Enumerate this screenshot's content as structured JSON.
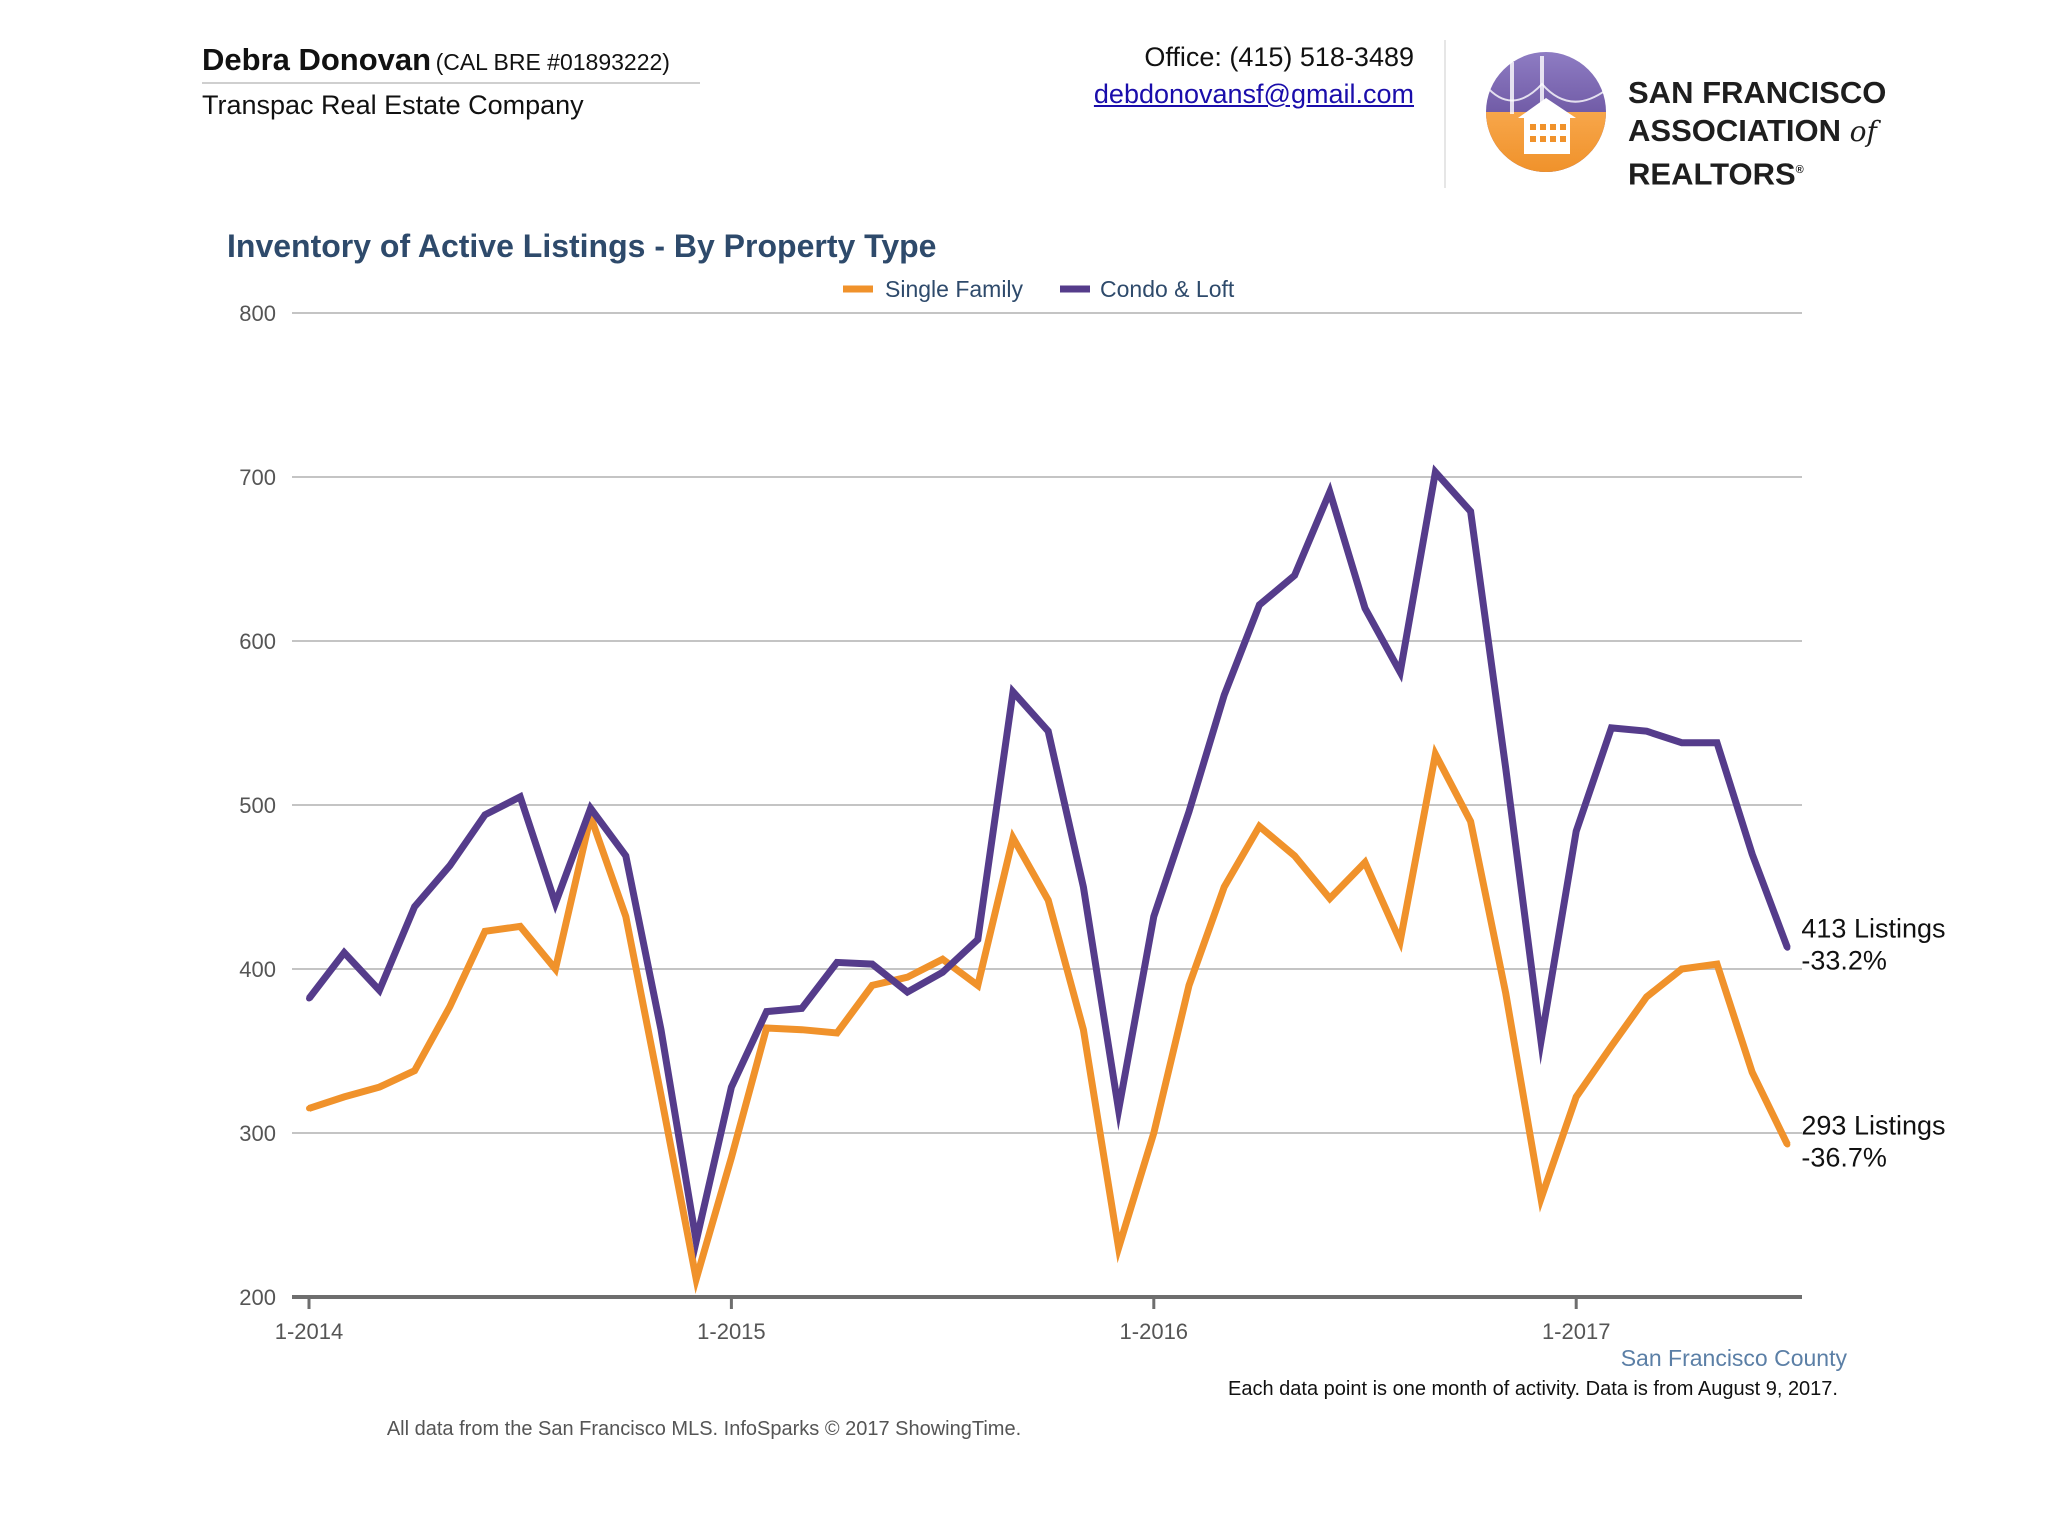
{
  "header": {
    "agent_name": "Debra Donovan",
    "agent_license": "(CAL BRE #01893222)",
    "company": "Transpac Real Estate Company",
    "office": "Office: (415) 518-3489",
    "email": "debdonovansf@gmail.com",
    "logo_line1": "San Francisco",
    "logo_line2_a": "Association",
    "logo_line2_of": "of",
    "logo_line2_b": "Realtors",
    "logo_reg": "®"
  },
  "chart_data": {
    "type": "line",
    "title": "Inventory of Active Listings - By Property Type",
    "ylim": [
      200,
      800
    ],
    "yticks": [
      200,
      300,
      400,
      500,
      600,
      700,
      800
    ],
    "xticks": [
      {
        "label": "1-2014",
        "index": 0
      },
      {
        "label": "1-2015",
        "index": 12
      },
      {
        "label": "1-2016",
        "index": 24
      },
      {
        "label": "1-2017",
        "index": 36
      }
    ],
    "grid": true,
    "legend_position": "top-center",
    "series": [
      {
        "name": "Single Family",
        "color": "#f0922b",
        "values": [
          315,
          322,
          328,
          338,
          377,
          423,
          426,
          400,
          493,
          432,
          323,
          211,
          285,
          364,
          363,
          361,
          390,
          395,
          406,
          390,
          480,
          442,
          363,
          230,
          300,
          390,
          450,
          487,
          469,
          443,
          465,
          417,
          531,
          490,
          385,
          260,
          322,
          353,
          383,
          400,
          403,
          337,
          293
        ],
        "end_label": "293 Listings",
        "end_change": "-36.7%"
      },
      {
        "name": "Condo & Loft",
        "color": "#553c8b",
        "values": [
          382,
          410,
          387,
          438,
          463,
          494,
          505,
          440,
          498,
          469,
          363,
          234,
          328,
          374,
          376,
          404,
          403,
          386,
          398,
          418,
          569,
          545,
          450,
          314,
          432,
          496,
          567,
          622,
          640,
          691,
          620,
          581,
          703,
          679,
          522,
          356,
          484,
          547,
          545,
          538,
          538,
          470,
          413
        ],
        "end_label": "413 Listings",
        "end_change": "-33.2%"
      }
    ],
    "region_label": "San Francisco County"
  },
  "footer": {
    "note": "Each data point is one month of activity. Data is from August 9, 2017.",
    "source": "All data from the San Francisco MLS. InfoSparks © 2017 ShowingTime."
  }
}
